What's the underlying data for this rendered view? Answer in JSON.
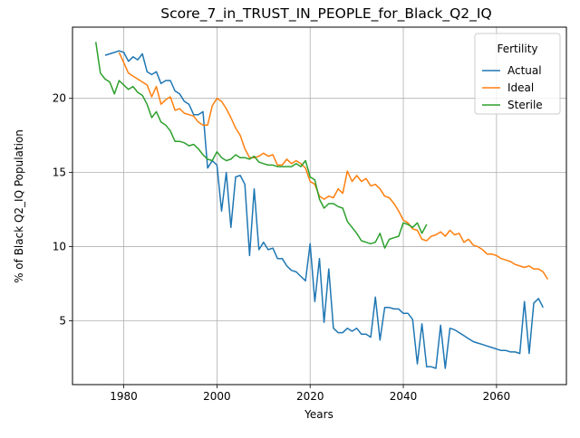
{
  "chart_data": {
    "type": "line",
    "title": "Score_7_in_TRUST_IN_PEOPLE_for_Black_Q2_IQ",
    "xlabel": "Years",
    "ylabel": "% of Black Q2_IQ Population",
    "xlim": [
      1969,
      2075
    ],
    "ylim": [
      0.7,
      24.8
    ],
    "xticks": [
      1980,
      2000,
      2020,
      2040,
      2060
    ],
    "yticks": [
      5,
      10,
      15,
      20
    ],
    "grid": true,
    "legend": {
      "title": "Fertility",
      "position": "top-right"
    },
    "series": [
      {
        "name": "Actual",
        "color": "#1f77b4",
        "points": [
          [
            1976,
            22.9
          ],
          [
            1977,
            23.0
          ],
          [
            1978,
            23.1
          ],
          [
            1979,
            23.2
          ],
          [
            1980,
            23.1
          ],
          [
            1981,
            22.5
          ],
          [
            1982,
            22.8
          ],
          [
            1983,
            22.6
          ],
          [
            1984,
            23.0
          ],
          [
            1985,
            21.8
          ],
          [
            1986,
            21.6
          ],
          [
            1987,
            21.8
          ],
          [
            1988,
            21.0
          ],
          [
            1989,
            21.2
          ],
          [
            1990,
            21.2
          ],
          [
            1991,
            20.5
          ],
          [
            1992,
            20.3
          ],
          [
            1993,
            19.8
          ],
          [
            1994,
            19.6
          ],
          [
            1995,
            18.9
          ],
          [
            1996,
            18.9
          ],
          [
            1997,
            19.1
          ],
          [
            1998,
            15.3
          ],
          [
            1999,
            15.8
          ],
          [
            2000,
            15.5
          ],
          [
            2001,
            12.4
          ],
          [
            2002,
            15.0
          ],
          [
            2003,
            11.3
          ],
          [
            2004,
            14.7
          ],
          [
            2005,
            14.8
          ],
          [
            2006,
            14.2
          ],
          [
            2007,
            9.4
          ],
          [
            2008,
            13.9
          ],
          [
            2009,
            9.8
          ],
          [
            2010,
            10.3
          ],
          [
            2011,
            9.8
          ],
          [
            2012,
            9.9
          ],
          [
            2013,
            9.2
          ],
          [
            2014,
            9.2
          ],
          [
            2015,
            8.7
          ],
          [
            2016,
            8.4
          ],
          [
            2017,
            8.3
          ],
          [
            2018,
            8.0
          ],
          [
            2019,
            7.7
          ],
          [
            2020,
            10.2
          ],
          [
            2021,
            6.3
          ],
          [
            2022,
            9.2
          ],
          [
            2023,
            4.9
          ],
          [
            2024,
            8.5
          ],
          [
            2025,
            4.5
          ],
          [
            2026,
            4.2
          ],
          [
            2027,
            4.2
          ],
          [
            2028,
            4.5
          ],
          [
            2029,
            4.3
          ],
          [
            2030,
            4.5
          ],
          [
            2031,
            4.1
          ],
          [
            2032,
            4.1
          ],
          [
            2033,
            3.9
          ],
          [
            2034,
            6.6
          ],
          [
            2035,
            3.7
          ],
          [
            2036,
            5.9
          ],
          [
            2037,
            5.9
          ],
          [
            2038,
            5.8
          ],
          [
            2039,
            5.8
          ],
          [
            2040,
            5.5
          ],
          [
            2041,
            5.5
          ],
          [
            2042,
            5.1
          ],
          [
            2043,
            2.1
          ],
          [
            2044,
            4.8
          ],
          [
            2045,
            1.9
          ],
          [
            2046,
            1.9
          ],
          [
            2047,
            1.8
          ],
          [
            2048,
            4.7
          ],
          [
            2049,
            1.8
          ],
          [
            2050,
            4.5
          ],
          [
            2051,
            4.4
          ],
          [
            2052,
            4.2
          ],
          [
            2053,
            4.0
          ],
          [
            2054,
            3.8
          ],
          [
            2055,
            3.6
          ],
          [
            2056,
            3.5
          ],
          [
            2057,
            3.4
          ],
          [
            2058,
            3.3
          ],
          [
            2059,
            3.2
          ],
          [
            2060,
            3.1
          ],
          [
            2061,
            3.0
          ],
          [
            2062,
            3.0
          ],
          [
            2063,
            2.9
          ],
          [
            2064,
            2.9
          ],
          [
            2065,
            2.8
          ],
          [
            2066,
            6.3
          ],
          [
            2067,
            2.8
          ],
          [
            2068,
            6.2
          ],
          [
            2069,
            6.5
          ],
          [
            2070,
            5.9
          ]
        ]
      },
      {
        "name": "Ideal",
        "color": "#ff7f0e",
        "points": [
          [
            1979,
            23.1
          ],
          [
            1980,
            22.4
          ],
          [
            1981,
            21.7
          ],
          [
            1982,
            21.5
          ],
          [
            1983,
            21.3
          ],
          [
            1984,
            21.1
          ],
          [
            1985,
            20.9
          ],
          [
            1986,
            20.1
          ],
          [
            1987,
            20.8
          ],
          [
            1988,
            19.6
          ],
          [
            1989,
            19.9
          ],
          [
            1990,
            20.1
          ],
          [
            1991,
            19.2
          ],
          [
            1992,
            19.3
          ],
          [
            1993,
            19.0
          ],
          [
            1994,
            18.9
          ],
          [
            1995,
            18.8
          ],
          [
            1996,
            18.4
          ],
          [
            1997,
            18.2
          ],
          [
            1998,
            18.2
          ],
          [
            1999,
            19.5
          ],
          [
            2000,
            20.0
          ],
          [
            2001,
            19.8
          ],
          [
            2002,
            19.3
          ],
          [
            2003,
            18.7
          ],
          [
            2004,
            18.0
          ],
          [
            2005,
            17.5
          ],
          [
            2006,
            16.6
          ],
          [
            2007,
            16.0
          ],
          [
            2008,
            16.0
          ],
          [
            2009,
            16.1
          ],
          [
            2010,
            16.3
          ],
          [
            2011,
            16.1
          ],
          [
            2012,
            16.2
          ],
          [
            2013,
            15.5
          ],
          [
            2014,
            15.5
          ],
          [
            2015,
            15.9
          ],
          [
            2016,
            15.6
          ],
          [
            2017,
            15.8
          ],
          [
            2018,
            15.6
          ],
          [
            2019,
            15.3
          ],
          [
            2020,
            14.4
          ],
          [
            2021,
            14.2
          ],
          [
            2022,
            13.4
          ],
          [
            2023,
            13.2
          ],
          [
            2024,
            13.4
          ],
          [
            2025,
            13.3
          ],
          [
            2026,
            13.9
          ],
          [
            2027,
            13.6
          ],
          [
            2028,
            15.1
          ],
          [
            2029,
            14.4
          ],
          [
            2030,
            14.8
          ],
          [
            2031,
            14.4
          ],
          [
            2032,
            14.6
          ],
          [
            2033,
            14.1
          ],
          [
            2034,
            14.2
          ],
          [
            2035,
            13.9
          ],
          [
            2036,
            13.4
          ],
          [
            2037,
            13.3
          ],
          [
            2038,
            12.9
          ],
          [
            2039,
            12.4
          ],
          [
            2040,
            11.8
          ],
          [
            2041,
            11.6
          ],
          [
            2042,
            11.2
          ],
          [
            2043,
            11.1
          ],
          [
            2044,
            10.5
          ],
          [
            2045,
            10.4
          ],
          [
            2046,
            10.7
          ],
          [
            2047,
            10.8
          ],
          [
            2048,
            11.0
          ],
          [
            2049,
            10.7
          ],
          [
            2050,
            11.1
          ],
          [
            2051,
            10.8
          ],
          [
            2052,
            10.9
          ],
          [
            2053,
            10.3
          ],
          [
            2054,
            10.5
          ],
          [
            2055,
            10.1
          ],
          [
            2056,
            10.0
          ],
          [
            2057,
            9.8
          ],
          [
            2058,
            9.5
          ],
          [
            2059,
            9.5
          ],
          [
            2060,
            9.4
          ],
          [
            2061,
            9.2
          ],
          [
            2062,
            9.1
          ],
          [
            2063,
            9.0
          ],
          [
            2064,
            8.8
          ],
          [
            2065,
            8.7
          ],
          [
            2066,
            8.6
          ],
          [
            2067,
            8.7
          ],
          [
            2068,
            8.5
          ],
          [
            2069,
            8.5
          ],
          [
            2070,
            8.3
          ],
          [
            2071,
            7.8
          ]
        ]
      },
      {
        "name": "Sterile",
        "color": "#2ca02c",
        "points": [
          [
            1974,
            23.8
          ],
          [
            1975,
            21.7
          ],
          [
            1976,
            21.3
          ],
          [
            1977,
            21.1
          ],
          [
            1978,
            20.3
          ],
          [
            1979,
            21.2
          ],
          [
            1980,
            20.9
          ],
          [
            1981,
            20.6
          ],
          [
            1982,
            20.8
          ],
          [
            1983,
            20.4
          ],
          [
            1984,
            20.2
          ],
          [
            1985,
            19.6
          ],
          [
            1986,
            18.7
          ],
          [
            1987,
            19.1
          ],
          [
            1988,
            18.4
          ],
          [
            1989,
            18.2
          ],
          [
            1990,
            17.8
          ],
          [
            1991,
            17.1
          ],
          [
            1992,
            17.1
          ],
          [
            1993,
            17.0
          ],
          [
            1994,
            16.8
          ],
          [
            1995,
            16.9
          ],
          [
            1996,
            16.6
          ],
          [
            1997,
            16.2
          ],
          [
            1998,
            15.9
          ],
          [
            1999,
            15.8
          ],
          [
            2000,
            16.4
          ],
          [
            2001,
            16.0
          ],
          [
            2002,
            15.8
          ],
          [
            2003,
            15.9
          ],
          [
            2004,
            16.2
          ],
          [
            2005,
            16.0
          ],
          [
            2006,
            16.0
          ],
          [
            2007,
            15.9
          ],
          [
            2008,
            16.1
          ],
          [
            2009,
            15.7
          ],
          [
            2010,
            15.6
          ],
          [
            2011,
            15.5
          ],
          [
            2012,
            15.5
          ],
          [
            2013,
            15.4
          ],
          [
            2014,
            15.4
          ],
          [
            2015,
            15.4
          ],
          [
            2016,
            15.4
          ],
          [
            2017,
            15.6
          ],
          [
            2018,
            15.4
          ],
          [
            2019,
            15.8
          ],
          [
            2020,
            14.7
          ],
          [
            2021,
            14.5
          ],
          [
            2022,
            13.2
          ],
          [
            2023,
            12.6
          ],
          [
            2024,
            12.9
          ],
          [
            2025,
            12.9
          ],
          [
            2026,
            12.7
          ],
          [
            2027,
            12.6
          ],
          [
            2028,
            11.7
          ],
          [
            2029,
            11.3
          ],
          [
            2030,
            10.9
          ],
          [
            2031,
            10.4
          ],
          [
            2032,
            10.3
          ],
          [
            2033,
            10.2
          ],
          [
            2034,
            10.3
          ],
          [
            2035,
            10.9
          ],
          [
            2036,
            9.9
          ],
          [
            2037,
            10.5
          ],
          [
            2038,
            10.6
          ],
          [
            2039,
            10.7
          ],
          [
            2040,
            11.6
          ],
          [
            2041,
            11.5
          ],
          [
            2042,
            11.3
          ],
          [
            2043,
            11.6
          ],
          [
            2044,
            10.9
          ],
          [
            2045,
            11.5
          ]
        ]
      }
    ]
  }
}
